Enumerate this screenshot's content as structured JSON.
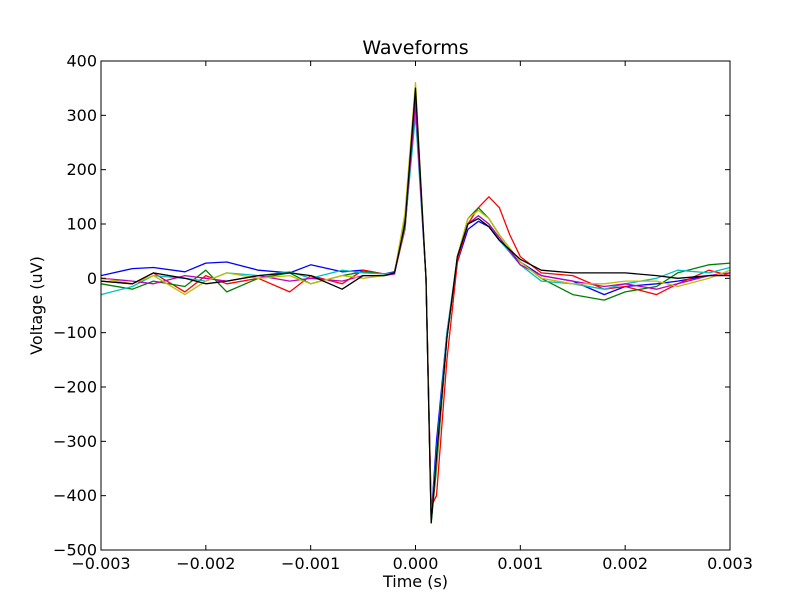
{
  "chart_data": {
    "type": "line",
    "title": "Waveforms",
    "xlabel": "Time (s)",
    "ylabel": "Voltage (uV)",
    "xlim": [
      -0.003,
      0.003
    ],
    "ylim": [
      -500,
      400
    ],
    "grid": false,
    "legend": "none",
    "xticks": [
      -0.003,
      -0.002,
      -0.001,
      0.0,
      0.001,
      0.002,
      0.003
    ],
    "xtick_labels": [
      "−0.003",
      "−0.002",
      "−0.001",
      "0.000",
      "0.001",
      "0.002",
      "0.003"
    ],
    "yticks": [
      -500,
      -400,
      -300,
      -200,
      -100,
      0,
      100,
      200,
      300,
      400
    ],
    "ytick_labels": [
      "−500",
      "−400",
      "−300",
      "−200",
      "−100",
      "0",
      "100",
      "200",
      "300",
      "400"
    ],
    "series": [
      {
        "color": "#0000ff",
        "x": [
          -0.003,
          -0.0027,
          -0.0025,
          -0.0022,
          -0.002,
          -0.0018,
          -0.0015,
          -0.0012,
          -0.001,
          -0.0007,
          -0.0005,
          -0.0003,
          -0.0002,
          -0.0001,
          0.0,
          0.0001,
          0.00015,
          0.0002,
          0.0003,
          0.0004,
          0.0005,
          0.0006,
          0.0007,
          0.0008,
          0.001,
          0.0012,
          0.0015,
          0.0018,
          0.002,
          0.0023,
          0.0025,
          0.0028,
          0.003
        ],
        "y": [
          5,
          18,
          20,
          12,
          28,
          30,
          15,
          10,
          25,
          12,
          15,
          8,
          12,
          100,
          330,
          0,
          -440,
          -300,
          -100,
          30,
          90,
          105,
          95,
          70,
          30,
          5,
          -5,
          -30,
          -15,
          -10,
          -5,
          5,
          10
        ]
      },
      {
        "color": "#ff0000",
        "x": [
          -0.003,
          -0.0027,
          -0.0025,
          -0.0022,
          -0.002,
          -0.0018,
          -0.0015,
          -0.0012,
          -0.001,
          -0.0007,
          -0.0005,
          -0.0003,
          -0.0002,
          -0.0001,
          0.0,
          0.0001,
          0.00015,
          0.0002,
          0.0003,
          0.0004,
          0.0005,
          0.0006,
          0.0007,
          0.0008,
          0.0009,
          0.001,
          0.0012,
          0.0015,
          0.0018,
          0.002,
          0.0023,
          0.0025,
          0.0028,
          0.003
        ],
        "y": [
          -5,
          -10,
          10,
          -25,
          5,
          -10,
          0,
          -25,
          5,
          -10,
          15,
          8,
          10,
          90,
          320,
          0,
          -420,
          -400,
          -150,
          30,
          100,
          130,
          150,
          130,
          80,
          40,
          10,
          5,
          -20,
          -15,
          -30,
          -10,
          15,
          5
        ]
      },
      {
        "color": "#008000",
        "x": [
          -0.003,
          -0.0027,
          -0.0025,
          -0.0022,
          -0.002,
          -0.0018,
          -0.0015,
          -0.0012,
          -0.001,
          -0.0007,
          -0.0005,
          -0.0003,
          -0.0002,
          -0.0001,
          0.0,
          0.0001,
          0.00015,
          0.0002,
          0.0003,
          0.0004,
          0.0005,
          0.0006,
          0.0007,
          0.0008,
          0.001,
          0.0012,
          0.0015,
          0.0018,
          0.002,
          0.0023,
          0.0025,
          0.0028,
          0.003
        ],
        "y": [
          -10,
          -20,
          -5,
          -15,
          15,
          -25,
          0,
          10,
          -10,
          5,
          12,
          8,
          10,
          110,
          340,
          0,
          -450,
          -350,
          -110,
          40,
          110,
          130,
          110,
          80,
          30,
          0,
          -30,
          -40,
          -25,
          -15,
          10,
          25,
          28
        ]
      },
      {
        "color": "#00bfbf",
        "x": [
          -0.003,
          -0.0027,
          -0.0025,
          -0.0022,
          -0.002,
          -0.0018,
          -0.0015,
          -0.0012,
          -0.001,
          -0.0007,
          -0.0005,
          -0.0003,
          -0.0002,
          -0.0001,
          0.0,
          0.0001,
          0.00015,
          0.0002,
          0.0003,
          0.0004,
          0.0005,
          0.0006,
          0.0007,
          0.0008,
          0.001,
          0.0012,
          0.0015,
          0.0018,
          0.002,
          0.0023,
          0.0025,
          0.0028,
          0.003
        ],
        "y": [
          -30,
          -15,
          5,
          0,
          -5,
          10,
          5,
          12,
          0,
          15,
          10,
          8,
          10,
          95,
          300,
          0,
          -440,
          -320,
          -100,
          40,
          100,
          115,
          100,
          70,
          25,
          -5,
          -10,
          -20,
          -10,
          0,
          15,
          10,
          20
        ]
      },
      {
        "color": "#bf00bf",
        "x": [
          -0.003,
          -0.0027,
          -0.0025,
          -0.0022,
          -0.002,
          -0.0018,
          -0.0015,
          -0.0012,
          -0.001,
          -0.0007,
          -0.0005,
          -0.0003,
          -0.0002,
          -0.0001,
          0.0,
          0.0001,
          0.00015,
          0.0002,
          0.0003,
          0.0004,
          0.0005,
          0.0006,
          0.0007,
          0.0008,
          0.001,
          0.0012,
          0.0015,
          0.0018,
          0.002,
          0.0023,
          0.0025,
          0.0028,
          0.003
        ],
        "y": [
          0,
          -5,
          -10,
          5,
          0,
          -5,
          5,
          -5,
          0,
          -5,
          5,
          5,
          8,
          100,
          320,
          0,
          -430,
          -340,
          -110,
          40,
          100,
          115,
          100,
          75,
          25,
          5,
          -5,
          -15,
          -10,
          -20,
          -10,
          5,
          10
        ]
      },
      {
        "color": "#bfbf00",
        "x": [
          -0.003,
          -0.0027,
          -0.0025,
          -0.0022,
          -0.002,
          -0.0018,
          -0.0015,
          -0.0012,
          -0.001,
          -0.0007,
          -0.0005,
          -0.0003,
          -0.0002,
          -0.0001,
          0.0,
          0.0001,
          0.00015,
          0.0002,
          0.0003,
          0.0004,
          0.0005,
          0.0006,
          0.0007,
          0.0008,
          0.001,
          0.0012,
          0.0015,
          0.0018,
          0.002,
          0.0023,
          0.0025,
          0.0028,
          0.003
        ],
        "y": [
          0,
          -10,
          5,
          -30,
          -5,
          10,
          0,
          5,
          -10,
          5,
          0,
          5,
          10,
          120,
          360,
          0,
          -440,
          -340,
          -110,
          40,
          110,
          125,
          110,
          80,
          30,
          0,
          -10,
          -10,
          -5,
          -5,
          -15,
          0,
          15
        ]
      },
      {
        "color": "#000000",
        "x": [
          -0.003,
          -0.0027,
          -0.0025,
          -0.0022,
          -0.002,
          -0.0018,
          -0.0015,
          -0.0012,
          -0.001,
          -0.0007,
          -0.0005,
          -0.0003,
          -0.0002,
          -0.0001,
          0.0,
          0.0001,
          0.00015,
          0.0002,
          0.0003,
          0.0004,
          0.0005,
          0.0006,
          0.0007,
          0.0008,
          0.001,
          0.0012,
          0.0015,
          0.0018,
          0.002,
          0.0023,
          0.0025,
          0.0028,
          0.003
        ],
        "y": [
          -5,
          -10,
          10,
          0,
          -10,
          -5,
          5,
          10,
          5,
          -20,
          5,
          5,
          10,
          100,
          350,
          0,
          -450,
          -330,
          -110,
          40,
          100,
          110,
          95,
          70,
          35,
          15,
          10,
          10,
          10,
          5,
          0,
          5,
          5
        ]
      }
    ]
  }
}
